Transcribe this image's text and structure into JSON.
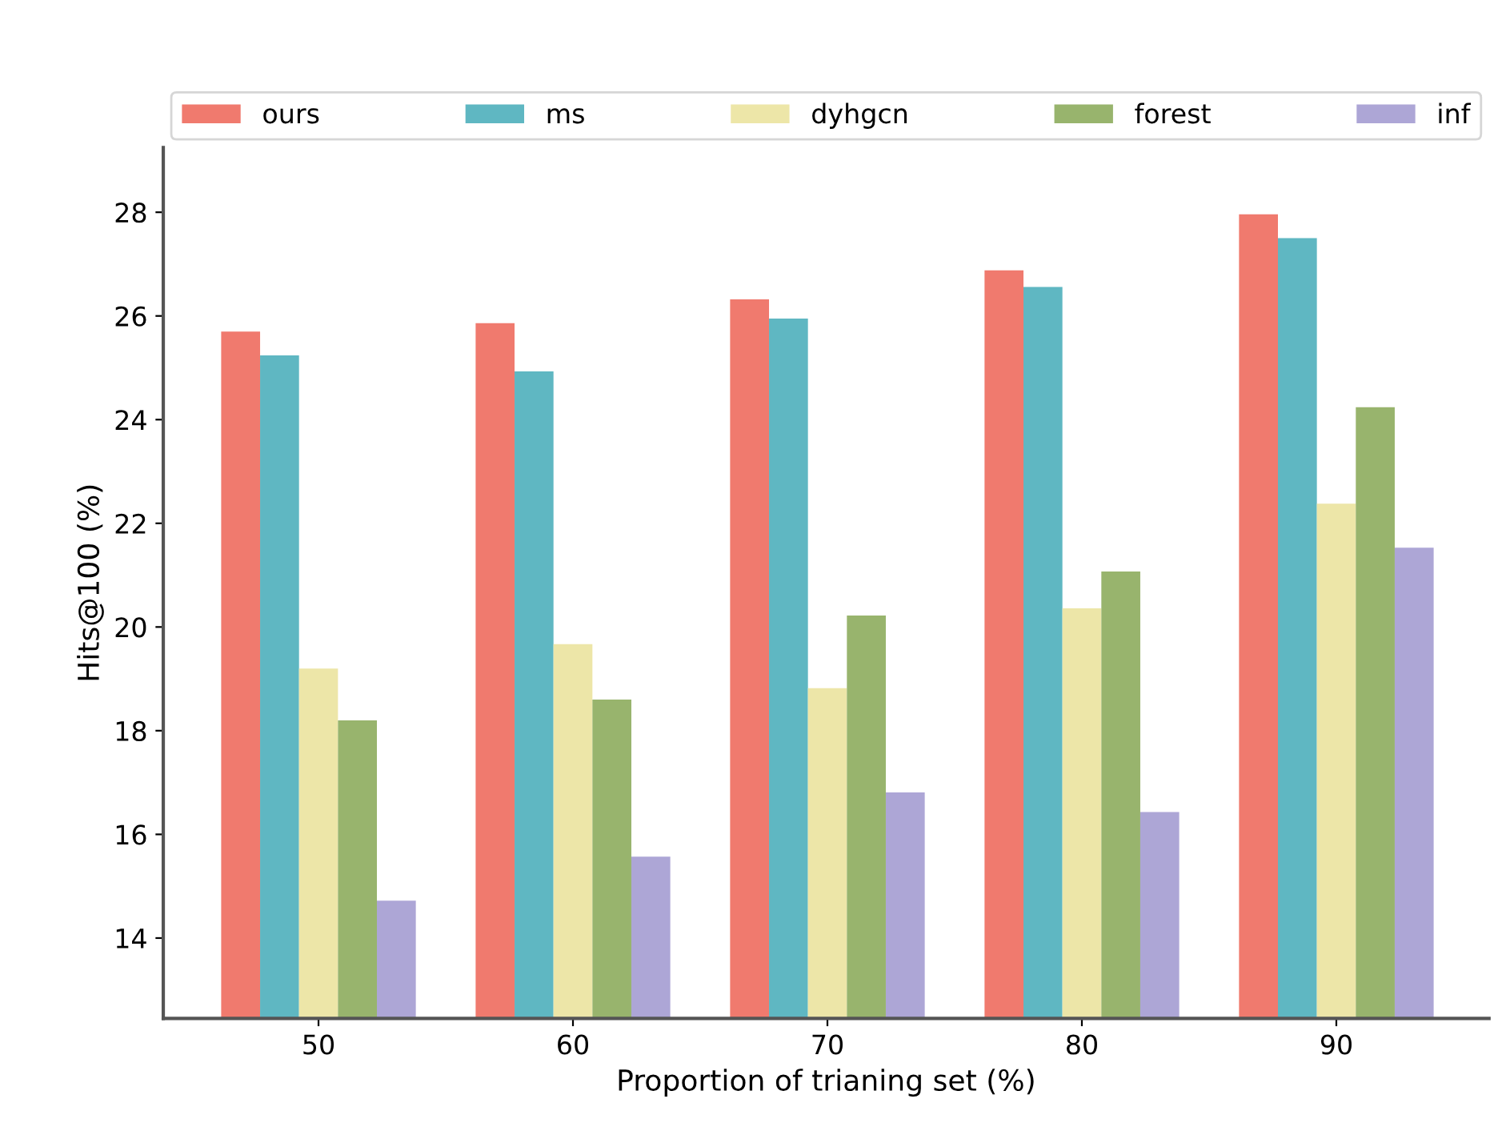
{
  "chart_data": {
    "type": "bar",
    "xlabel": "Proportion of trianing set (%)",
    "ylabel": "Hits@100 (%)",
    "categories": [
      "50",
      "60",
      "70",
      "80",
      "90"
    ],
    "series": [
      {
        "name": "ours",
        "color": "#f07a6e",
        "values": [
          25.7,
          25.86,
          26.32,
          26.88,
          27.96
        ]
      },
      {
        "name": "ms",
        "color": "#5fb7c2",
        "values": [
          25.24,
          24.93,
          25.95,
          26.56,
          27.5
        ]
      },
      {
        "name": "dyhgcn",
        "color": "#ede6a8",
        "values": [
          19.2,
          19.67,
          18.82,
          20.36,
          22.38
        ]
      },
      {
        "name": "forest",
        "color": "#98b46d",
        "values": [
          18.2,
          18.6,
          20.22,
          21.07,
          24.24
        ]
      },
      {
        "name": "inf",
        "color": "#ada6d6",
        "values": [
          14.72,
          15.57,
          16.81,
          16.43,
          21.53
        ]
      }
    ],
    "ylim": [
      12.45,
      29.25
    ],
    "yticks": [
      14,
      16,
      18,
      20,
      22,
      24,
      26,
      28
    ],
    "legend": "top",
    "grid": false
  }
}
